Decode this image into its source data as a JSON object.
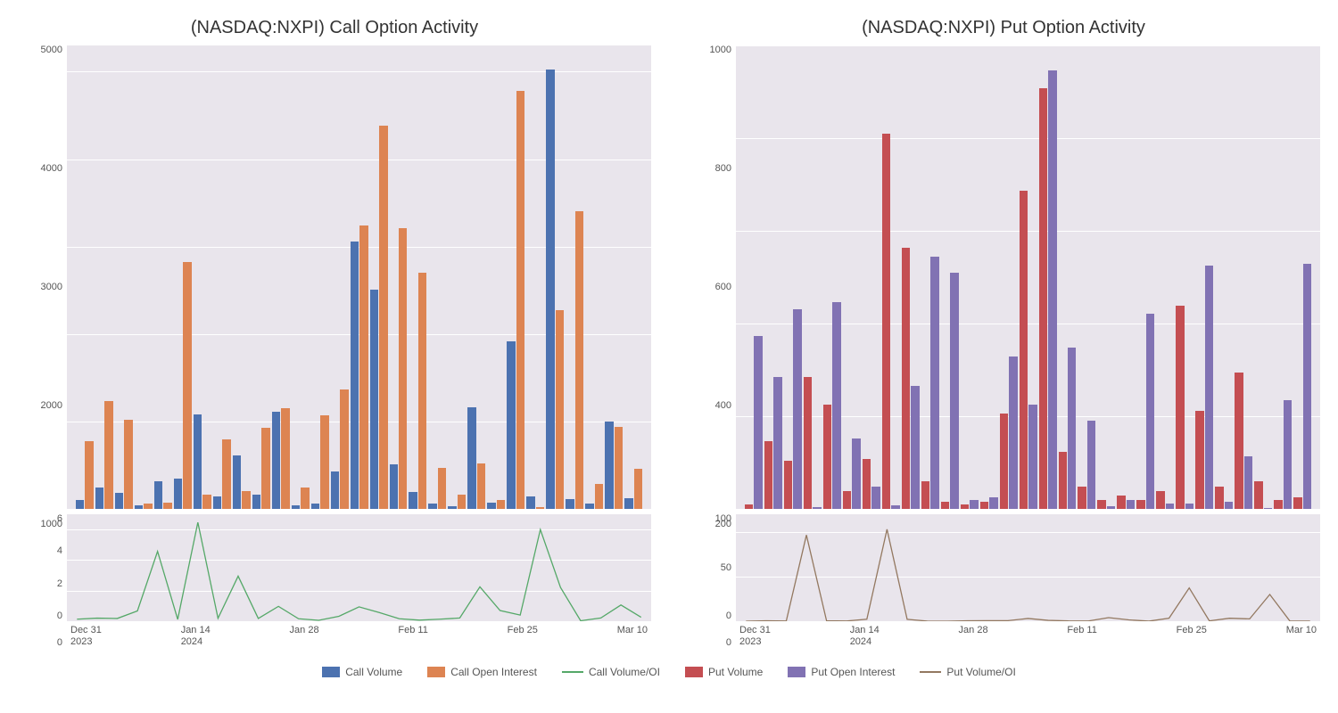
{
  "left_chart": {
    "type": "bar+line",
    "title": "(NASDAQ:NXPI) Call Option Activity",
    "title_fontsize": 20,
    "bar_series": [
      {
        "name": "Call Volume",
        "color": "#4c72b0"
      },
      {
        "name": "Call Open Interest",
        "color": "#dd8452"
      }
    ],
    "line_series": {
      "name": "Call Volume/OI",
      "color": "#55a868"
    },
    "background_color": "#e9e5ec",
    "grid_color": "#ffffff",
    "main_ylim": [
      0,
      5300
    ],
    "main_yticks": [
      0,
      1000,
      2000,
      3000,
      4000,
      5000
    ],
    "sub_ylim": [
      0,
      7
    ],
    "sub_yticks": [
      0,
      2,
      4,
      6
    ],
    "x_labels": [
      "Dec 31\n2023",
      "Jan 14\n2024",
      "Jan 28",
      "Feb 11",
      "Feb 25",
      "Mar 10"
    ],
    "data": [
      {
        "v": 100,
        "oi": 790,
        "r": 0.13
      },
      {
        "v": 250,
        "oi": 1260,
        "r": 0.2
      },
      {
        "v": 190,
        "oi": 1040,
        "r": 0.18
      },
      {
        "v": 40,
        "oi": 60,
        "r": 0.67
      },
      {
        "v": 320,
        "oi": 70,
        "r": 4.57
      },
      {
        "v": 350,
        "oi": 2880,
        "r": 0.12
      },
      {
        "v": 1100,
        "oi": 170,
        "r": 6.47
      },
      {
        "v": 150,
        "oi": 810,
        "r": 0.19
      },
      {
        "v": 620,
        "oi": 210,
        "r": 2.95
      },
      {
        "v": 170,
        "oi": 950,
        "r": 0.18
      },
      {
        "v": 1130,
        "oi": 1170,
        "r": 0.97
      },
      {
        "v": 40,
        "oi": 250,
        "r": 0.16
      },
      {
        "v": 60,
        "oi": 1090,
        "r": 0.06
      },
      {
        "v": 440,
        "oi": 1390,
        "r": 0.32
      },
      {
        "v": 3120,
        "oi": 3310,
        "r": 0.94
      },
      {
        "v": 2560,
        "oi": 4470,
        "r": 0.57
      },
      {
        "v": 520,
        "oi": 3270,
        "r": 0.16
      },
      {
        "v": 200,
        "oi": 2750,
        "r": 0.07
      },
      {
        "v": 60,
        "oi": 480,
        "r": 0.13
      },
      {
        "v": 35,
        "oi": 170,
        "r": 0.21
      },
      {
        "v": 1190,
        "oi": 530,
        "r": 2.25
      },
      {
        "v": 70,
        "oi": 100,
        "r": 0.7
      },
      {
        "v": 1950,
        "oi": 4870,
        "r": 0.4
      },
      {
        "v": 150,
        "oi": 25,
        "r": 6.0
      },
      {
        "v": 5120,
        "oi": 2320,
        "r": 2.21
      },
      {
        "v": 110,
        "oi": 3470,
        "r": 0.03
      },
      {
        "v": 60,
        "oi": 290,
        "r": 0.21
      },
      {
        "v": 1020,
        "oi": 960,
        "r": 1.06
      },
      {
        "v": 120,
        "oi": 470,
        "r": 0.26
      }
    ]
  },
  "right_chart": {
    "type": "bar+line",
    "title": "(NASDAQ:NXPI) Put Option Activity",
    "title_fontsize": 20,
    "bar_series": [
      {
        "name": "Put Volume",
        "color": "#c44e52"
      },
      {
        "name": "Put Open Interest",
        "color": "#8172b3"
      }
    ],
    "line_series": {
      "name": "Put Volume/OI",
      "color": "#937860"
    },
    "background_color": "#e9e5ec",
    "grid_color": "#ffffff",
    "main_ylim": [
      0,
      1000
    ],
    "main_yticks": [
      0,
      200,
      400,
      600,
      800,
      1000
    ],
    "sub_ylim": [
      0,
      120
    ],
    "sub_yticks": [
      0,
      50,
      100
    ],
    "x_labels": [
      "Dec 31\n2023",
      "Jan 14\n2024",
      "Jan 28",
      "Feb 11",
      "Feb 25",
      "Mar 10"
    ],
    "data": [
      {
        "v": 10,
        "oi": 380,
        "r": 0.03
      },
      {
        "v": 150,
        "oi": 290,
        "r": 0.52
      },
      {
        "v": 105,
        "oi": 440,
        "r": 0.24
      },
      {
        "v": 290,
        "oi": 3,
        "r": 96.67
      },
      {
        "v": 230,
        "oi": 455,
        "r": 0.51
      },
      {
        "v": 40,
        "oi": 155,
        "r": 0.26
      },
      {
        "v": 110,
        "oi": 50,
        "r": 2.2
      },
      {
        "v": 825,
        "oi": 8,
        "r": 103.13
      },
      {
        "v": 575,
        "oi": 270,
        "r": 2.13
      },
      {
        "v": 60,
        "oi": 555,
        "r": 0.11
      },
      {
        "v": 15,
        "oi": 520,
        "r": 0.03
      },
      {
        "v": 10,
        "oi": 20,
        "r": 0.5
      },
      {
        "v": 15,
        "oi": 25,
        "r": 0.6
      },
      {
        "v": 210,
        "oi": 335,
        "r": 0.63
      },
      {
        "v": 700,
        "oi": 230,
        "r": 3.04
      },
      {
        "v": 925,
        "oi": 965,
        "r": 0.96
      },
      {
        "v": 125,
        "oi": 355,
        "r": 0.35
      },
      {
        "v": 50,
        "oi": 195,
        "r": 0.26
      },
      {
        "v": 20,
        "oi": 5,
        "r": 4.0
      },
      {
        "v": 30,
        "oi": 20,
        "r": 1.5
      },
      {
        "v": 20,
        "oi": 430,
        "r": 0.05
      },
      {
        "v": 40,
        "oi": 12,
        "r": 3.33
      },
      {
        "v": 448,
        "oi": 12,
        "r": 37.33
      },
      {
        "v": 215,
        "oi": 535,
        "r": 0.4
      },
      {
        "v": 50,
        "oi": 15,
        "r": 3.33
      },
      {
        "v": 300,
        "oi": 115,
        "r": 2.61
      },
      {
        "v": 60,
        "oi": 2,
        "r": 30.0
      },
      {
        "v": 20,
        "oi": 240,
        "r": 0.08
      },
      {
        "v": 25,
        "oi": 540,
        "r": 0.05
      }
    ]
  },
  "legend": [
    {
      "label": "Call Volume",
      "type": "swatch",
      "color": "#4c72b0"
    },
    {
      "label": "Call Open Interest",
      "type": "swatch",
      "color": "#dd8452"
    },
    {
      "label": "Call Volume/OI",
      "type": "line",
      "color": "#55a868"
    },
    {
      "label": "Put Volume",
      "type": "swatch",
      "color": "#c44e52"
    },
    {
      "label": "Put Open Interest",
      "type": "swatch",
      "color": "#8172b3"
    },
    {
      "label": "Put Volume/OI",
      "type": "line",
      "color": "#937860"
    }
  ]
}
